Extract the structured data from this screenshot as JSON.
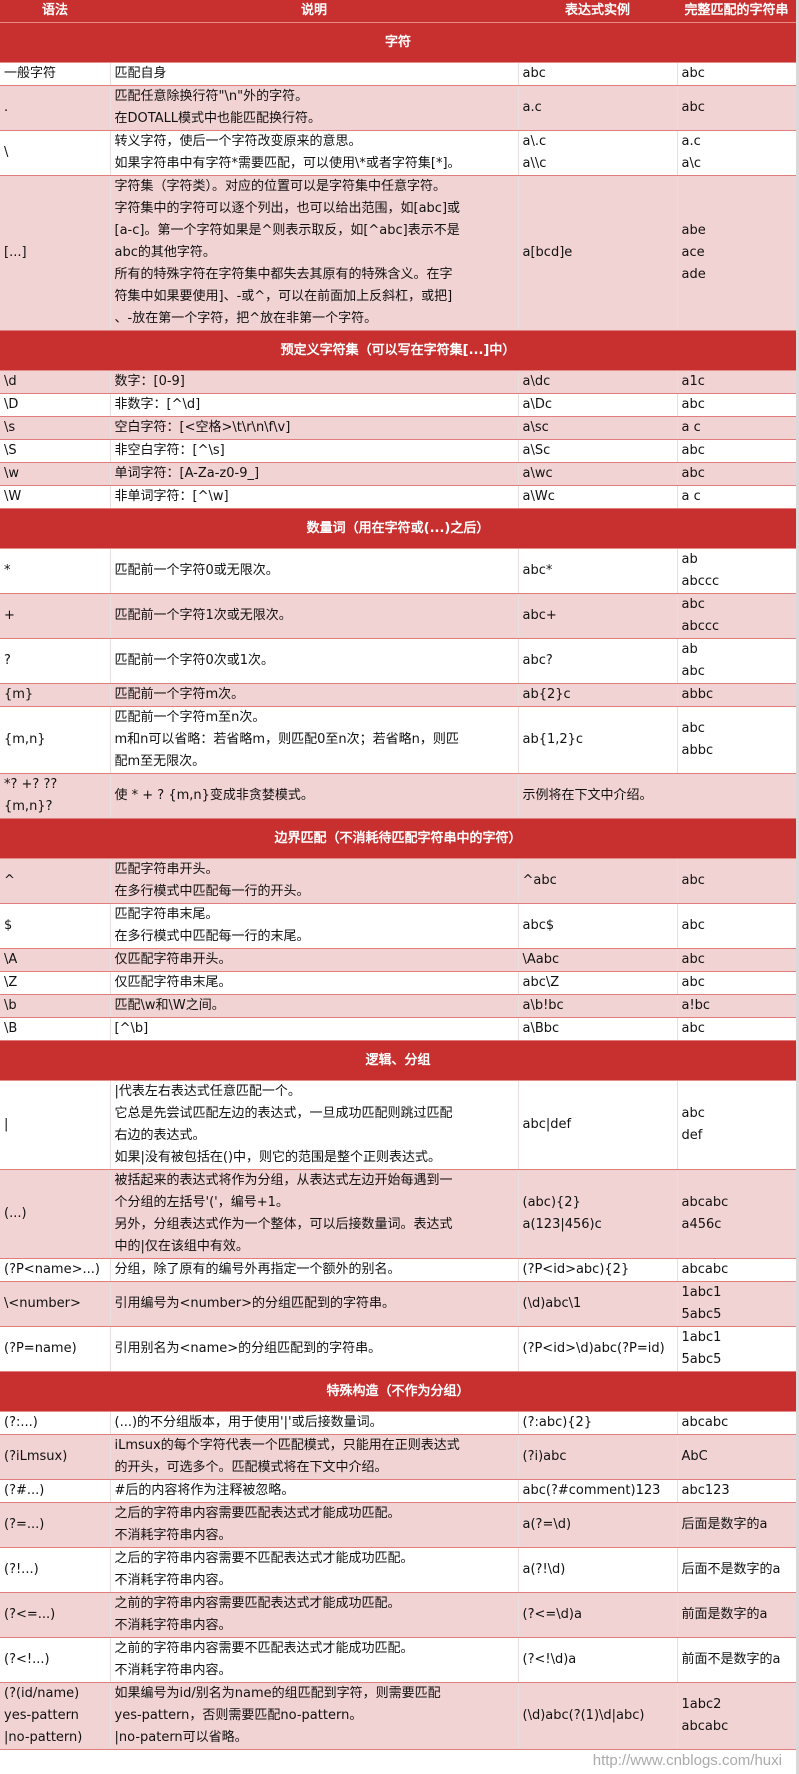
{
  "header": {
    "syntax": "语法",
    "description": "说明",
    "example": "表达式实例",
    "match": "完整匹配的字符串"
  },
  "colors": {
    "header_bg": "#c8302f",
    "pink_row": "#f2d3d4",
    "border": "#e07e7d"
  },
  "rows": [
    {
      "type": "section",
      "title": "字符"
    },
    {
      "type": "white",
      "syntax": "一般字符",
      "desc": "匹配自身",
      "example": "abc",
      "match": "abc"
    },
    {
      "type": "pink",
      "syntax": ".",
      "desc": "匹配任意除换行符\"\\n\"外的字符。\n在DOTALL模式中也能匹配换行符。",
      "example": "a.c",
      "match": "abc"
    },
    {
      "type": "white",
      "syntax": "\\",
      "desc": "转义字符，使后一个字符改变原来的意思。\n如果字符串中有字符*需要匹配，可以使用\\*或者字符集[*]。",
      "example": "a\\.c\na\\\\c",
      "match": "a.c\na\\c"
    },
    {
      "type": "pink",
      "syntax": "[...]",
      "desc": "字符集（字符类）。对应的位置可以是字符集中任意字符。\n字符集中的字符可以逐个列出，也可以给出范围，如[abc]或\n[a-c]。第一个字符如果是^则表示取反，如[^abc]表示不是\nabc的其他字符。\n所有的特殊字符在字符集中都失去其原有的特殊含义。在字\n符集中如果要使用]、-或^，可以在前面加上反斜杠，或把]\n、-放在第一个字符，把^放在非第一个字符。",
      "example": "a[bcd]e",
      "match": "abe\nace\nade"
    },
    {
      "type": "section",
      "title": "预定义字符集（可以写在字符集[...]中）"
    },
    {
      "type": "pink",
      "syntax": "\\d",
      "desc": "数字：[0-9]",
      "example": "a\\dc",
      "match": "a1c"
    },
    {
      "type": "white",
      "syntax": "\\D",
      "desc": "非数字：[^\\d]",
      "example": "a\\Dc",
      "match": "abc"
    },
    {
      "type": "pink",
      "syntax": "\\s",
      "desc": "空白字符：[<空格>\\t\\r\\n\\f\\v]",
      "example": "a\\sc",
      "match": "a c"
    },
    {
      "type": "white",
      "syntax": "\\S",
      "desc": "非空白字符：[^\\s]",
      "example": "a\\Sc",
      "match": "abc"
    },
    {
      "type": "pink",
      "syntax": "\\w",
      "desc": "单词字符：[A-Za-z0-9_]",
      "example": "a\\wc",
      "match": "abc"
    },
    {
      "type": "white",
      "syntax": "\\W",
      "desc": "非单词字符：[^\\w]",
      "example": "a\\Wc",
      "match": "a c"
    },
    {
      "type": "section",
      "title": "数量词（用在字符或(...)之后）"
    },
    {
      "type": "white",
      "syntax": "*",
      "desc": "匹配前一个字符0或无限次。",
      "example": "abc*",
      "match": "ab\nabccc"
    },
    {
      "type": "pink",
      "syntax": "+",
      "desc": "匹配前一个字符1次或无限次。",
      "example": "abc+",
      "match": "abc\nabccc"
    },
    {
      "type": "white",
      "syntax": "?",
      "desc": "匹配前一个字符0次或1次。",
      "example": "abc?",
      "match": "ab\nabc"
    },
    {
      "type": "pink",
      "syntax": "{m}",
      "desc": "匹配前一个字符m次。",
      "example": "ab{2}c",
      "match": "abbc"
    },
    {
      "type": "white",
      "syntax": "{m,n}",
      "desc": "匹配前一个字符m至n次。\nm和n可以省略：若省略m，则匹配0至n次；若省略n，则匹\n配m至无限次。",
      "example": "ab{1,2}c",
      "match": "abc\nabbc"
    },
    {
      "type": "pink",
      "syntax": "*? +? ??\n{m,n}?",
      "desc": "使 * + ? {m,n}变成非贪婪模式。",
      "example": "示例将在下文中介绍。",
      "match": ""
    },
    {
      "type": "section",
      "title": "边界匹配（不消耗待匹配字符串中的字符）"
    },
    {
      "type": "pink",
      "syntax": "^",
      "desc": "匹配字符串开头。\n在多行模式中匹配每一行的开头。",
      "example": "^abc",
      "match": "abc"
    },
    {
      "type": "white",
      "syntax": "$",
      "desc": "匹配字符串末尾。\n在多行模式中匹配每一行的末尾。",
      "example": "abc$",
      "match": "abc"
    },
    {
      "type": "pink",
      "syntax": "\\A",
      "desc": "仅匹配字符串开头。",
      "example": "\\Aabc",
      "match": "abc"
    },
    {
      "type": "white",
      "syntax": "\\Z",
      "desc": "仅匹配字符串末尾。",
      "example": "abc\\Z",
      "match": "abc"
    },
    {
      "type": "pink",
      "syntax": "\\b",
      "desc": "匹配\\w和\\W之间。",
      "example": "a\\b!bc",
      "match": "a!bc"
    },
    {
      "type": "white",
      "syntax": "\\B",
      "desc": "[^\\b]",
      "example": "a\\Bbc",
      "match": "abc"
    },
    {
      "type": "section",
      "title": "逻辑、分组"
    },
    {
      "type": "white",
      "syntax": "|",
      "desc": "|代表左右表达式任意匹配一个。\n它总是先尝试匹配左边的表达式，一旦成功匹配则跳过匹配\n右边的表达式。\n如果|没有被包括在()中，则它的范围是整个正则表达式。",
      "example": "abc|def",
      "match": "abc\ndef"
    },
    {
      "type": "pink",
      "syntax": "(...)",
      "desc": "被括起来的表达式将作为分组，从表达式左边开始每遇到一\n个分组的左括号'('，编号+1。\n另外，分组表达式作为一个整体，可以后接数量词。表达式\n中的|仅在该组中有效。",
      "example": "(abc){2}\na(123|456)c",
      "match": "abcabc\na456c"
    },
    {
      "type": "white",
      "syntax": "(?P<name>...)",
      "desc": "分组，除了原有的编号外再指定一个额外的别名。",
      "example": "(?P<id>abc){2}",
      "match": "abcabc"
    },
    {
      "type": "pink",
      "syntax": "\\<number>",
      "desc": "引用编号为<number>的分组匹配到的字符串。",
      "example": "(\\d)abc\\1",
      "match": "1abc1\n5abc5"
    },
    {
      "type": "white",
      "syntax": "(?P=name)",
      "desc": "引用别名为<name>的分组匹配到的字符串。",
      "example": "(?P<id>\\d)abc(?P=id)",
      "match": "1abc1\n5abc5"
    },
    {
      "type": "section",
      "title": "特殊构造（不作为分组）"
    },
    {
      "type": "white",
      "syntax": "(?:...)",
      "desc": "(...)的不分组版本，用于使用'|'或后接数量词。",
      "example": "(?:abc){2}",
      "match": "abcabc"
    },
    {
      "type": "pink",
      "syntax": "(?iLmsux)",
      "desc": "iLmsux的每个字符代表一个匹配模式，只能用在正则表达式\n的开头，可选多个。匹配模式将在下文中介绍。",
      "example": "(?i)abc",
      "match": "AbC"
    },
    {
      "type": "white",
      "syntax": "(?#...)",
      "desc": "#后的内容将作为注释被忽略。",
      "example": "abc(?#comment)123",
      "match": "abc123"
    },
    {
      "type": "pink",
      "syntax": "(?=...)",
      "desc": "之后的字符串内容需要匹配表达式才能成功匹配。\n不消耗字符串内容。",
      "example": "a(?=\\d)",
      "match": "后面是数字的a"
    },
    {
      "type": "white",
      "syntax": "(?!...)",
      "desc": "之后的字符串内容需要不匹配表达式才能成功匹配。\n不消耗字符串内容。",
      "example": "a(?!\\d)",
      "match": "后面不是数字的a"
    },
    {
      "type": "pink",
      "syntax": "(?<=...)",
      "desc": "之前的字符串内容需要匹配表达式才能成功匹配。\n不消耗字符串内容。",
      "example": "(?<=\\d)a",
      "match": "前面是数字的a"
    },
    {
      "type": "white",
      "syntax": "(?<!...)",
      "desc": "之前的字符串内容需要不匹配表达式才能成功匹配。\n不消耗字符串内容。",
      "example": "(?<!\\d)a",
      "match": "前面不是数字的a"
    },
    {
      "type": "pink",
      "syntax": "(?(id/name)\nyes-pattern\n|no-pattern)",
      "desc": "如果编号为id/别名为name的组匹配到字符，则需要匹配\nyes-pattern，否则需要匹配no-pattern。\n|no-patern可以省略。",
      "example": "(\\d)abc(?(1)\\d|abc)",
      "match": "1abc2\nabcabc"
    }
  ],
  "watermark": "http://www.cnblogs.com/huxi"
}
